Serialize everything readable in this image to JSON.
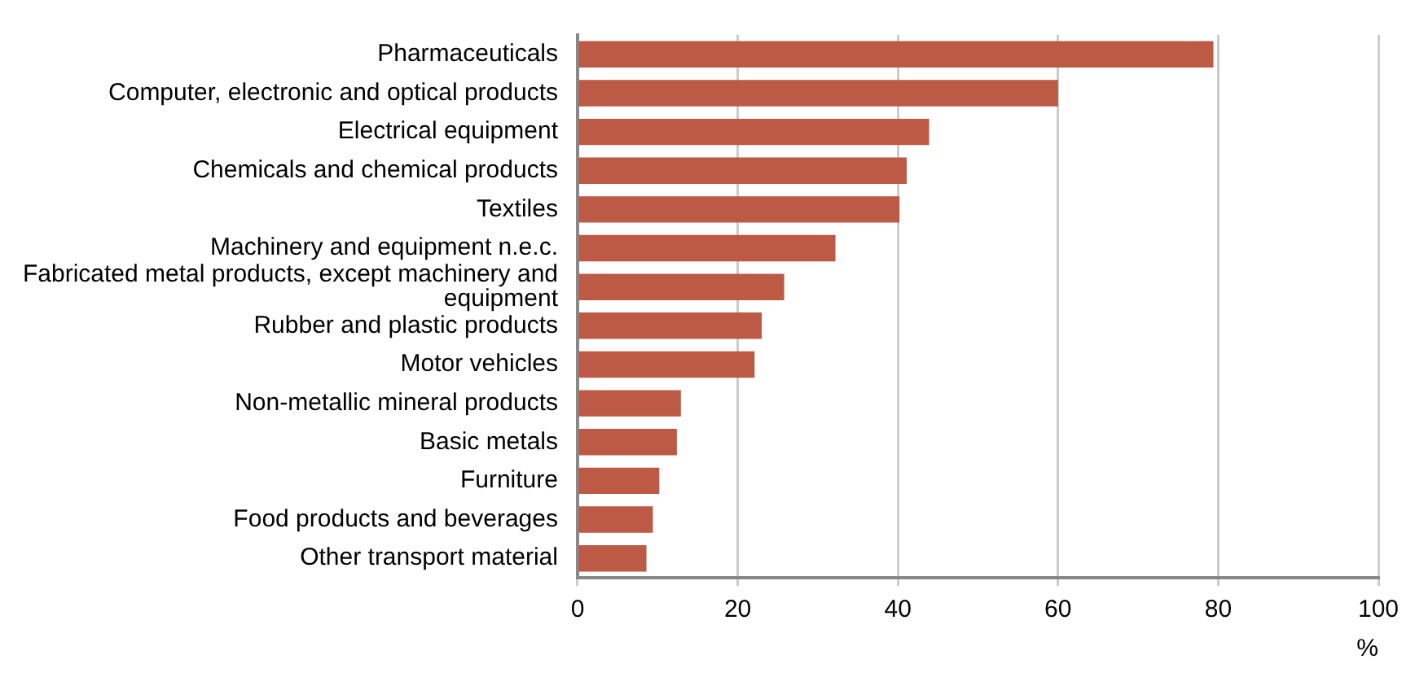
{
  "chart_data": {
    "type": "bar",
    "orientation": "horizontal",
    "xlabel": "%",
    "categories": [
      "Pharmaceuticals",
      "Computer, electronic and optical products",
      "Electrical equipment",
      "Chemicals and chemical products",
      "Textiles",
      "Machinery and equipment n.e.c.",
      "Fabricated metal products, except machinery and equipment",
      "Rubber and plastic products",
      "Motor vehicles",
      "Non-metallic mineral products",
      "Basic metals",
      "Furniture",
      "Food products and beverages",
      "Other transport material"
    ],
    "values": [
      79.4,
      60,
      43.9,
      41.1,
      40.2,
      32.2,
      25.8,
      23,
      22.1,
      12.9,
      12.4,
      10.2,
      9.4,
      8.6
    ],
    "color": "#bc5a45",
    "xlim": [
      0,
      100
    ],
    "xticks": [
      0,
      20,
      40,
      60,
      80,
      100
    ],
    "grid": "x",
    "legend": false
  }
}
